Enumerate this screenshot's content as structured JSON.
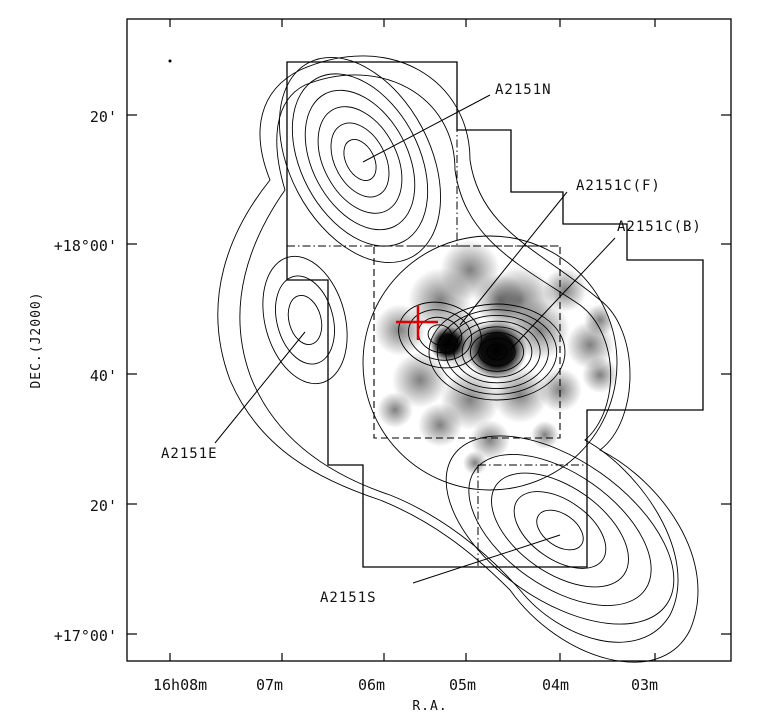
{
  "chart_data": {
    "type": "contour",
    "xlabel": "R.A.",
    "ylabel": "DEC.(J2000)",
    "x_ticks": [
      "16h08m",
      "07m",
      "06m",
      "05m",
      "04m",
      "03m"
    ],
    "y_ticks": [
      "20'",
      "+18°00'",
      "40'",
      "20'",
      "+17°00'"
    ],
    "regions": [
      {
        "name": "A2151N",
        "text": "A2151N"
      },
      {
        "name": "A2151C(F)",
        "text": "A2151C(F)"
      },
      {
        "name": "A2151C(B)",
        "text": "A2151C(B)"
      },
      {
        "name": "A2151E",
        "text": "A2151E"
      },
      {
        "name": "A2151S",
        "text": "A2151S"
      }
    ],
    "peaks": [
      {
        "name": "A2151N",
        "levels": 6
      },
      {
        "name": "A2151E",
        "levels": 3
      },
      {
        "name": "A2151S",
        "levels": 5
      },
      {
        "name": "A2151C(B)",
        "levels": 8
      },
      {
        "name": "A2151C(F)",
        "levels": 4
      }
    ],
    "marker": {
      "symbol": "cross",
      "color": "#e00000"
    },
    "grid": false,
    "legend": "none"
  }
}
